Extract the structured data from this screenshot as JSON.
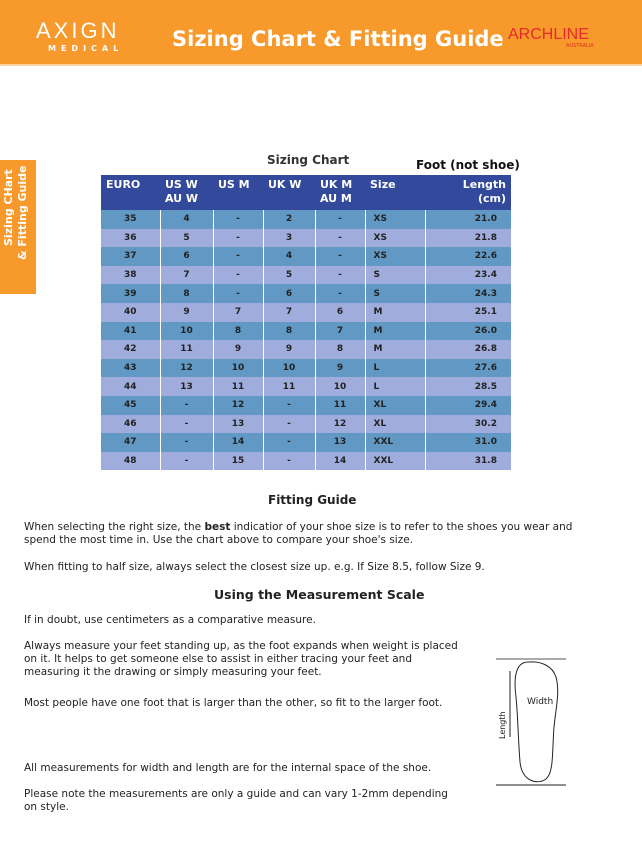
{
  "header": {
    "logo_main": "AXIGN",
    "logo_sub": "MEDICAL",
    "title": "Sizing Chart & Fitting Guide",
    "brand": "ARCHLINE",
    "brand_sub": "AUSTRALIA"
  },
  "side_tab": {
    "line1": "Sizing CHart",
    "line2": "& Fitting Guide"
  },
  "chart": {
    "title": "Sizing Chart",
    "note": "Foot (not shoe)",
    "columns": [
      "EURO",
      "US W\nAU W",
      "US M",
      "UK W",
      "UK M\nAU M",
      "Size",
      "Length\n(cm)"
    ],
    "rows": [
      [
        "35",
        "4",
        "-",
        "2",
        "-",
        "XS",
        "21.0"
      ],
      [
        "36",
        "5",
        "-",
        "3",
        "-",
        "XS",
        "21.8"
      ],
      [
        "37",
        "6",
        "-",
        "4",
        "-",
        "XS",
        "22.6"
      ],
      [
        "38",
        "7",
        "-",
        "5",
        "-",
        "S",
        "23.4"
      ],
      [
        "39",
        "8",
        "-",
        "6",
        "-",
        "S",
        "24.3"
      ],
      [
        "40",
        "9",
        "7",
        "7",
        "6",
        "M",
        "25.1"
      ],
      [
        "41",
        "10",
        "8",
        "8",
        "7",
        "M",
        "26.0"
      ],
      [
        "42",
        "11",
        "9",
        "9",
        "8",
        "M",
        "26.8"
      ],
      [
        "43",
        "12",
        "10",
        "10",
        "9",
        "L",
        "27.6"
      ],
      [
        "44",
        "13",
        "11",
        "11",
        "10",
        "L",
        "28.5"
      ],
      [
        "45",
        "-",
        "12",
        "-",
        "11",
        "XL",
        "29.4"
      ],
      [
        "46",
        "-",
        "13",
        "-",
        "12",
        "XL",
        "30.2"
      ],
      [
        "47",
        "-",
        "14",
        "-",
        "13",
        "XXL",
        "31.0"
      ],
      [
        "48",
        "-",
        "15",
        "-",
        "14",
        "XXL",
        "31.8"
      ]
    ]
  },
  "fitting": {
    "title": "Fitting Guide",
    "p1_pre": "When selecting the right size, the ",
    "p1_bold": "best",
    "p1_post": " indicatior of your shoe size is to refer to the shoes you wear and spend the most time in. Use the chart above to compare your shoe's size.",
    "p2": "When fitting to half size, always select the closest size up. e.g. If Size 8.5, follow Size 9."
  },
  "measurement": {
    "title": "Using the Measurement Scale",
    "p1": "If in doubt, use centimeters as a comparative measure.",
    "p2": "Always measure your feet standing up, as the foot expands when weight is placed on it. It helps to get someone else to assist in either tracing your feet and measuring it the drawing or simply measuring your feet.",
    "p3": "Most people have one foot that is larger than the other, so fit to the larger foot.",
    "p4": "All measurements for width and length are for the internal space of the shoe.",
    "p5": "Please note the measurements are only a guide and can vary 1-2mm depending on style.",
    "diagram_length": "Length",
    "diagram_width": "Width"
  }
}
